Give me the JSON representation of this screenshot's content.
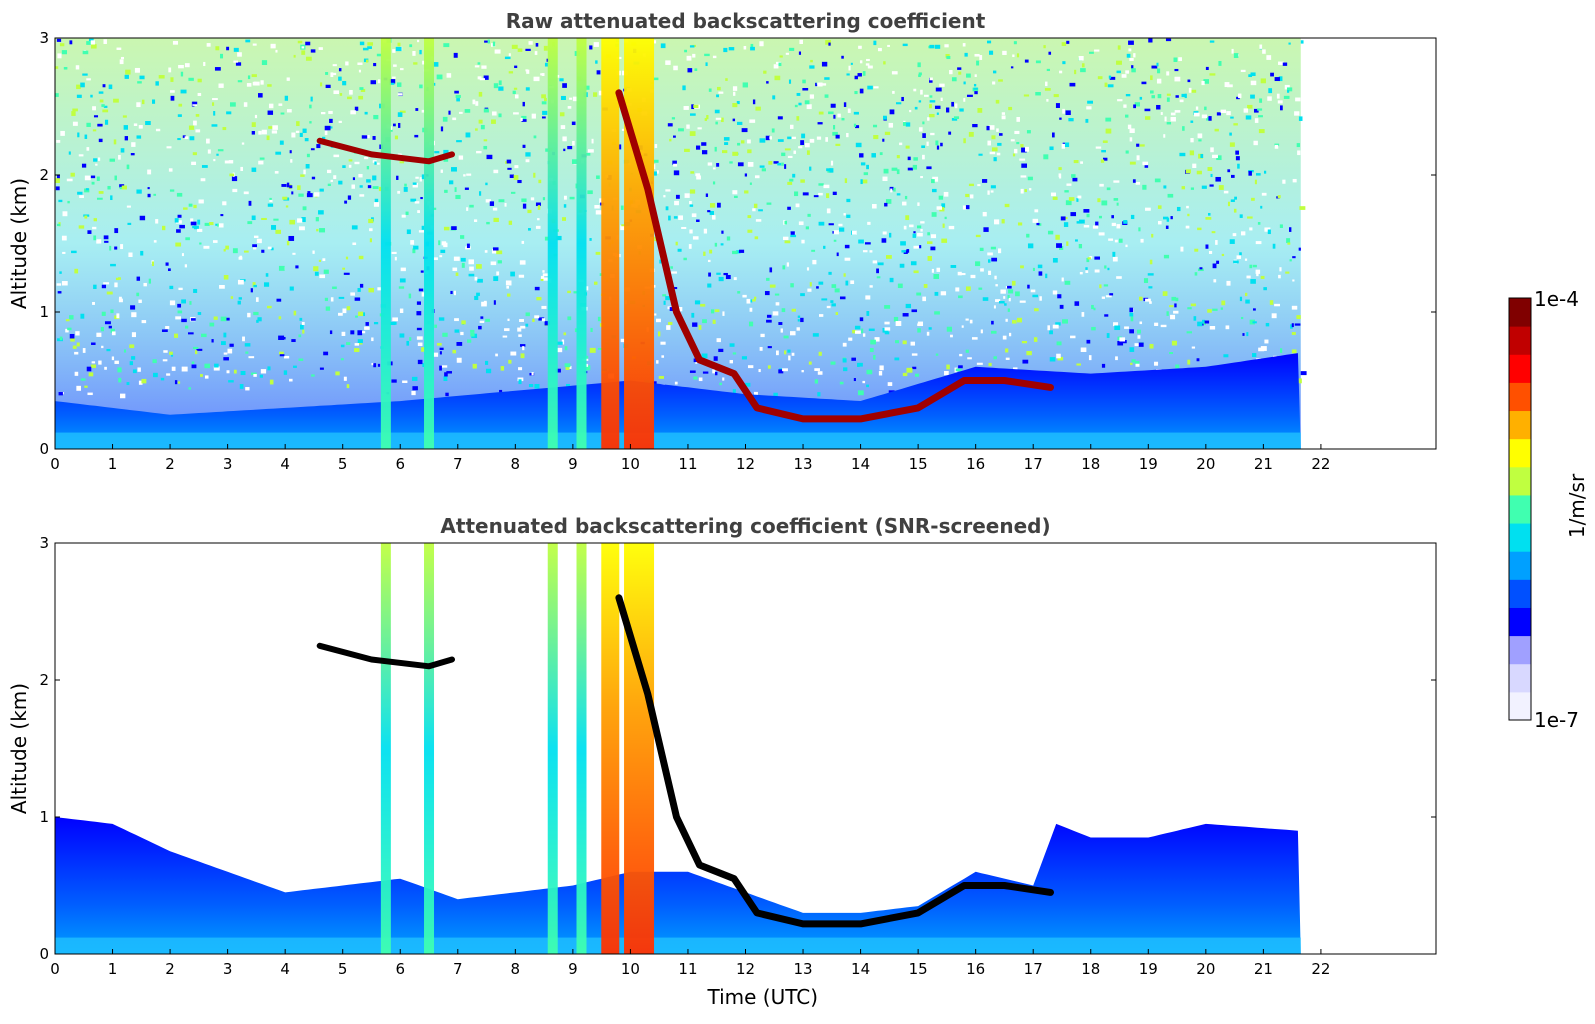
{
  "chart_data": [
    {
      "type": "heatmap",
      "title": "Raw attenuated backscattering coefficient",
      "ylabel": "Altitude (km)",
      "xlabel": "",
      "x_ticks": [
        "0",
        "1",
        "2",
        "3",
        "4",
        "5",
        "6",
        "7",
        "8",
        "9",
        "10",
        "11",
        "12",
        "13",
        "14",
        "15",
        "16",
        "17",
        "18",
        "19",
        "20",
        "21",
        "22"
      ],
      "y_ticks": [
        "0",
        "1",
        "2",
        "3"
      ],
      "xlim": [
        0,
        24
      ],
      "ylim": [
        0,
        3
      ],
      "data_extent_hours": [
        0,
        21.65
      ],
      "grid": false,
      "features": [
        {
          "label": "boundary layer top",
          "points": [
            [
              0,
              0.35
            ],
            [
              2,
              0.25
            ],
            [
              4,
              0.3
            ],
            [
              6,
              0.35
            ],
            [
              10,
              0.5
            ],
            [
              12,
              0.4
            ],
            [
              14,
              0.35
            ],
            [
              16,
              0.6
            ],
            [
              18,
              0.55
            ],
            [
              20,
              0.6
            ],
            [
              21.6,
              0.7
            ]
          ]
        },
        {
          "label": "cloud layer",
          "points": [
            [
              9.8,
              2.6
            ],
            [
              10.3,
              1.9
            ],
            [
              10.8,
              1.0
            ],
            [
              11.2,
              0.65
            ],
            [
              11.8,
              0.55
            ],
            [
              12.2,
              0.3
            ],
            [
              13,
              0.22
            ],
            [
              14,
              0.22
            ],
            [
              15,
              0.3
            ],
            [
              15.8,
              0.5
            ],
            [
              16.5,
              0.5
            ],
            [
              17.3,
              0.45
            ]
          ]
        },
        {
          "label": "elevated cloud",
          "points": [
            [
              4.6,
              2.25
            ],
            [
              5.5,
              2.15
            ],
            [
              6.5,
              2.1
            ],
            [
              6.9,
              2.15
            ]
          ]
        },
        {
          "label": "precipitation columns",
          "times": [
            5.75,
            6.5,
            8.65,
            9.15,
            9.65,
            10.15
          ]
        }
      ]
    },
    {
      "type": "heatmap",
      "title": "Attenuated backscattering coefficient (SNR-screened)",
      "ylabel": "Altitude (km)",
      "xlabel": "Time (UTC)",
      "x_ticks": [
        "0",
        "1",
        "2",
        "3",
        "4",
        "5",
        "6",
        "7",
        "8",
        "9",
        "10",
        "11",
        "12",
        "13",
        "14",
        "15",
        "16",
        "17",
        "18",
        "19",
        "20",
        "21",
        "22"
      ],
      "y_ticks": [
        "0",
        "1",
        "2",
        "3"
      ],
      "xlim": [
        0,
        24
      ],
      "ylim": [
        0,
        3
      ],
      "data_extent_hours": [
        0,
        21.65
      ],
      "grid": false,
      "features": [
        {
          "label": "boundary layer top",
          "points": [
            [
              0,
              1.0
            ],
            [
              1,
              0.95
            ],
            [
              2,
              0.75
            ],
            [
              3,
              0.6
            ],
            [
              4,
              0.45
            ],
            [
              5,
              0.5
            ],
            [
              6,
              0.55
            ],
            [
              7,
              0.4
            ],
            [
              8,
              0.45
            ],
            [
              9,
              0.5
            ],
            [
              10,
              0.6
            ],
            [
              11,
              0.6
            ],
            [
              12,
              0.45
            ],
            [
              13,
              0.3
            ],
            [
              14,
              0.3
            ],
            [
              15,
              0.35
            ],
            [
              16,
              0.6
            ],
            [
              17,
              0.5
            ],
            [
              17.4,
              0.95
            ],
            [
              18,
              0.85
            ],
            [
              19,
              0.85
            ],
            [
              20,
              0.95
            ],
            [
              21.6,
              0.9
            ]
          ]
        },
        {
          "label": "cloud layer",
          "points": [
            [
              9.8,
              2.6
            ],
            [
              10.3,
              1.9
            ],
            [
              10.8,
              1.0
            ],
            [
              11.2,
              0.65
            ],
            [
              11.8,
              0.55
            ],
            [
              12.2,
              0.3
            ],
            [
              13,
              0.22
            ],
            [
              14,
              0.22
            ],
            [
              15,
              0.3
            ],
            [
              15.8,
              0.5
            ],
            [
              16.5,
              0.5
            ],
            [
              17.3,
              0.45
            ]
          ]
        },
        {
          "label": "elevated cloud",
          "points": [
            [
              4.6,
              2.25
            ],
            [
              5.5,
              2.15
            ],
            [
              6.5,
              2.1
            ],
            [
              6.9,
              2.15
            ]
          ]
        },
        {
          "label": "precipitation columns",
          "times": [
            5.75,
            6.5,
            8.65,
            9.15,
            9.65,
            10.15
          ]
        }
      ]
    }
  ],
  "colorbar": {
    "label": "1/m/sr",
    "max_label": "1e-4",
    "min_label": "1e-7",
    "scale": "log",
    "range": [
      1e-07,
      0.0001
    ],
    "colormap": [
      "#f2f2ff",
      "#d8d8ff",
      "#a0a0ff",
      "#0000ff",
      "#0050ff",
      "#00a0ff",
      "#00e0f0",
      "#40ffb0",
      "#c0ff40",
      "#ffff00",
      "#ffb000",
      "#ff5000",
      "#ff0000",
      "#c00000",
      "#800000"
    ]
  }
}
